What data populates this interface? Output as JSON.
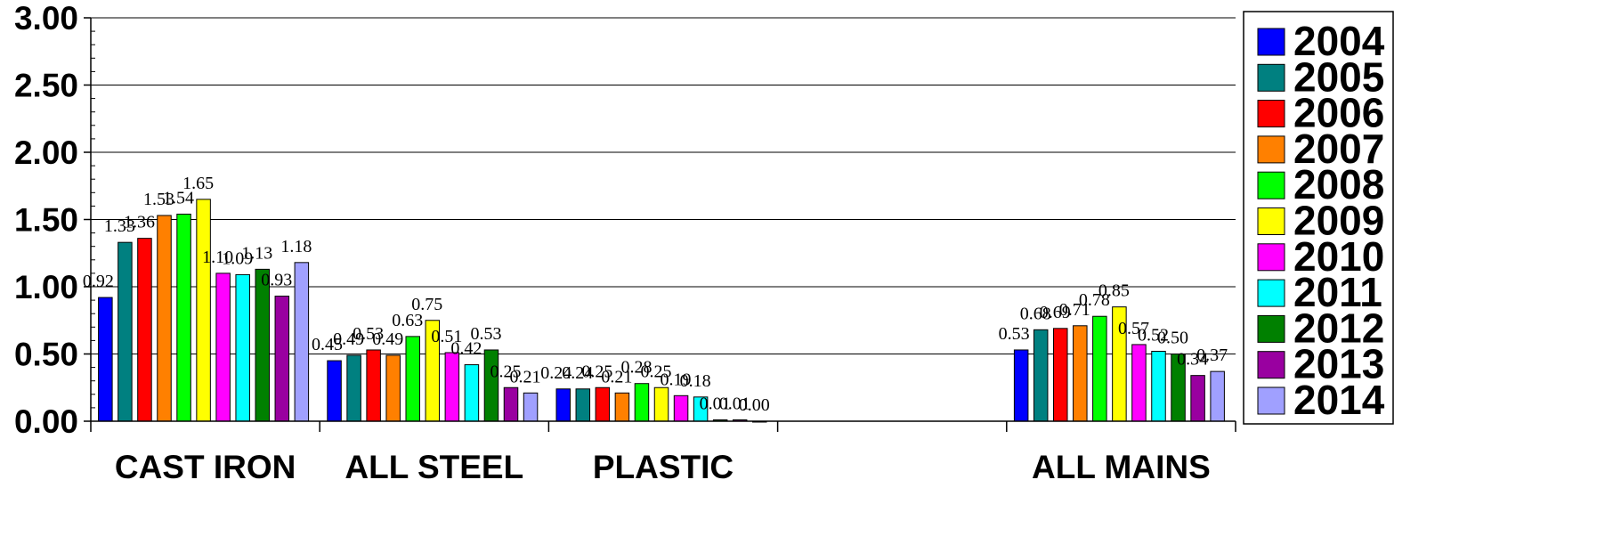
{
  "chart_data": {
    "type": "bar",
    "categories": [
      "CAST IRON",
      "ALL STEEL",
      "PLASTIC",
      "",
      "ALL MAINS"
    ],
    "ylim": [
      0,
      3
    ],
    "yticks": [
      "0.00",
      "0.50",
      "1.00",
      "1.50",
      "2.00",
      "2.50",
      "3.00"
    ],
    "grid": true,
    "legend_position": "right",
    "series": [
      {
        "name": "2004",
        "color": "#0000FF",
        "values": [
          0.92,
          0.45,
          0.24,
          null,
          0.53
        ],
        "labels": [
          "0.92",
          "0.45",
          "0.24",
          "",
          "0.53"
        ]
      },
      {
        "name": "2005",
        "color": "#008080",
        "values": [
          1.33,
          0.49,
          0.24,
          null,
          0.68
        ],
        "labels": [
          "1.33",
          "0.49",
          "0.24",
          "",
          "0.68"
        ]
      },
      {
        "name": "2006",
        "color": "#FF0000",
        "values": [
          1.36,
          0.53,
          0.25,
          null,
          0.69
        ],
        "labels": [
          "1.36",
          "0.53",
          "0.25",
          "",
          "0.69"
        ]
      },
      {
        "name": "2007",
        "color": "#FF8000",
        "values": [
          1.53,
          0.49,
          0.21,
          null,
          0.71
        ],
        "labels": [
          "1.53",
          "0.49",
          "0.21",
          "",
          "0.71"
        ]
      },
      {
        "name": "2008",
        "color": "#00FF00",
        "values": [
          1.54,
          0.63,
          0.28,
          null,
          0.78
        ],
        "labels": [
          "1.54",
          "0.63",
          "0.28",
          "",
          "0.78"
        ]
      },
      {
        "name": "2009",
        "color": "#FFFF00",
        "values": [
          1.65,
          0.75,
          0.25,
          null,
          0.85
        ],
        "labels": [
          "1.65",
          "0.75",
          "0.25",
          "",
          "0.85"
        ]
      },
      {
        "name": "2010",
        "color": "#FF00FF",
        "values": [
          1.1,
          0.51,
          0.19,
          null,
          0.57
        ],
        "labels": [
          "1.10",
          "0.51",
          "0.19",
          "",
          "0.57"
        ]
      },
      {
        "name": "2011",
        "color": "#00FFFF",
        "values": [
          1.09,
          0.42,
          0.18,
          null,
          0.52
        ],
        "labels": [
          "1.09",
          "0.42",
          "0.18",
          "",
          "0.52"
        ]
      },
      {
        "name": "2012",
        "color": "#008000",
        "values": [
          1.13,
          0.53,
          0.01,
          null,
          0.5
        ],
        "labels": [
          "1.13",
          "0.53",
          "0.01",
          "",
          "0.50"
        ]
      },
      {
        "name": "2013",
        "color": "#9900A0",
        "values": [
          0.93,
          0.25,
          0.01,
          null,
          0.34
        ],
        "labels": [
          "0.93",
          "0.25",
          "0.01",
          "",
          "0.34"
        ]
      },
      {
        "name": "2014",
        "color": "#A0A0FF",
        "values": [
          1.18,
          0.21,
          0.0,
          null,
          0.37
        ],
        "labels": [
          "1.18",
          "0.21",
          "0.00",
          "",
          "0.37"
        ]
      }
    ]
  }
}
